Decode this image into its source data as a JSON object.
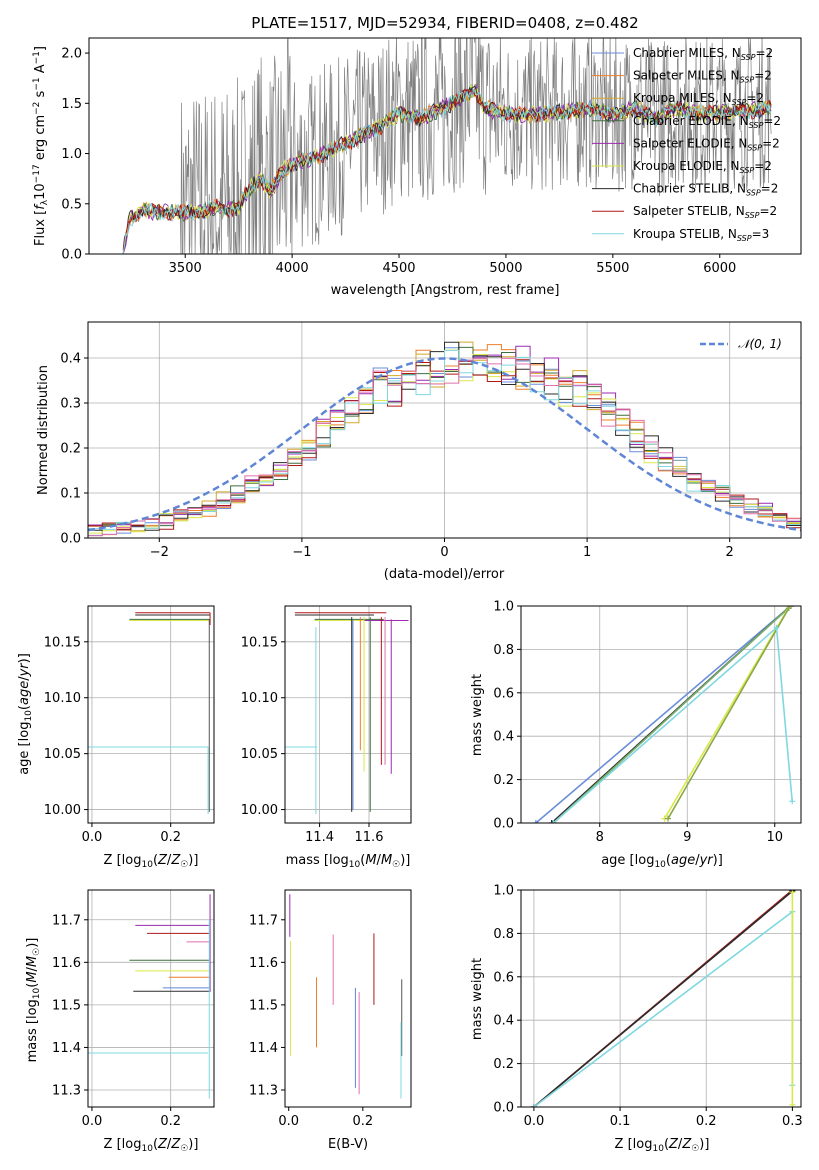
{
  "chart_data": [
    {
      "type": "line",
      "title": "PLATE=1517, MJD=52934, FIBERID=0408, z=0.482",
      "xlabel": "wavelength [Angstrom, rest frame]",
      "ylabel": "Flux [f_λ10^-17 erg cm^-2 s^-1 A^-1]",
      "xlim": [
        3050,
        6380
      ],
      "ylim": [
        0,
        2.15
      ],
      "xticks": [
        3500,
        4000,
        4500,
        5000,
        5500,
        6000
      ],
      "yticks": [
        0.0,
        0.5,
        1.0,
        1.5,
        2.0
      ],
      "grid": false,
      "legend_position": "top-right",
      "data_range": [
        3210,
        6240
      ],
      "model_anchor": {
        "x": [
          3210,
          3240,
          3300,
          3500,
          3550,
          3600,
          3650,
          3700,
          3750,
          3800,
          3850,
          3900,
          3950,
          4000,
          4050,
          4100,
          4200,
          4300,
          4400,
          4500,
          4600,
          4700,
          4800,
          4850,
          4900,
          5000,
          5100,
          5200,
          5300,
          5400,
          5500,
          5600,
          5700,
          5800,
          5900,
          6000,
          6100,
          6240
        ],
        "y": [
          0.03,
          0.35,
          0.43,
          0.41,
          0.42,
          0.43,
          0.47,
          0.44,
          0.47,
          0.65,
          0.75,
          0.62,
          0.82,
          0.9,
          0.93,
          0.95,
          1.05,
          1.15,
          1.25,
          1.4,
          1.35,
          1.45,
          1.55,
          1.65,
          1.45,
          1.4,
          1.38,
          1.4,
          1.42,
          1.45,
          1.38,
          1.45,
          1.35,
          1.45,
          1.4,
          1.4,
          1.42,
          1.45
        ]
      },
      "series": [
        {
          "name": "Chabrier MILES, N_SSP=2",
          "color": "#6a8ed8"
        },
        {
          "name": "Salpeter MILES, N_SSP=2",
          "color": "#ef7f2a"
        },
        {
          "name": "Kroupa MILES, N_SSP=2",
          "color": "#d4a82a"
        },
        {
          "name": "Chabrier ELODIE, N_SSP=2",
          "color": "#3f6e3f"
        },
        {
          "name": "Salpeter ELODIE, N_SSP=2",
          "color": "#9b2ab0"
        },
        {
          "name": "Kroupa ELODIE, N_SSP=2",
          "color": "#d9e84a"
        },
        {
          "name": "Chabrier STELIB, N_SSP=2",
          "color": "#2b2b2b"
        },
        {
          "name": "Salpeter STELIB, N_SSP=2",
          "color": "#b01818"
        },
        {
          "name": "Kroupa STELIB, N_SSP=3",
          "color": "#7fd8e0"
        }
      ],
      "legend_labels": [
        {
          "pre": "Chabrier MILES, N",
          "sub": "SSP",
          "post": "=2"
        },
        {
          "pre": "Salpeter MILES, N",
          "sub": "SSP",
          "post": "=2"
        },
        {
          "pre": "Kroupa MILES, N",
          "sub": "SSP",
          "post": "=2"
        },
        {
          "pre": "Chabrier ELODIE, N",
          "sub": "SSP",
          "post": "=2"
        },
        {
          "pre": "Salpeter ELODIE, N",
          "sub": "SSP",
          "post": "=2"
        },
        {
          "pre": "Kroupa ELODIE, N",
          "sub": "SSP",
          "post": "=2"
        },
        {
          "pre": "Chabrier STELIB, N",
          "sub": "SSP",
          "post": "=2"
        },
        {
          "pre": "Salpeter STELIB, N",
          "sub": "SSP",
          "post": "=2"
        },
        {
          "pre": "Kroupa STELIB, N",
          "sub": "SSP",
          "post": "=3"
        }
      ]
    },
    {
      "type": "bar",
      "xlabel": "(data-model)/error",
      "ylabel": "Normed distribution",
      "xlim": [
        -2.5,
        2.5
      ],
      "ylim": [
        0,
        0.48
      ],
      "xticks": [
        -2,
        -1,
        0,
        1,
        2
      ],
      "yticks": [
        0.0,
        0.1,
        0.2,
        0.3,
        0.4
      ],
      "grid": true,
      "legend_position": "top-right",
      "legend_label": "𝒩(0, 1)",
      "bin_edges_start": -2.5,
      "bin_width": 0.1,
      "envelope": [
        0.018,
        0.021,
        0.024,
        0.028,
        0.032,
        0.038,
        0.046,
        0.056,
        0.07,
        0.085,
        0.1,
        0.115,
        0.13,
        0.155,
        0.18,
        0.2,
        0.23,
        0.26,
        0.29,
        0.31,
        0.33,
        0.34,
        0.355,
        0.37,
        0.375,
        0.39,
        0.4,
        0.4,
        0.39,
        0.38,
        0.375,
        0.36,
        0.35,
        0.34,
        0.33,
        0.31,
        0.29,
        0.26,
        0.23,
        0.2,
        0.175,
        0.155,
        0.13,
        0.11,
        0.1,
        0.085,
        0.072,
        0.062,
        0.05,
        0.04
      ],
      "gaussian": {
        "mean": 0,
        "sigma": 1,
        "color": "#5f86d5"
      }
    },
    {
      "type": "scatter",
      "xlabel": "Z [log10(Z/Z☉)]",
      "ylabel": "age [log10(age/yr)]",
      "xlim": [
        -0.01,
        0.31
      ],
      "ylim": [
        9.988,
        10.182
      ],
      "xticks": [
        0.0,
        0.2
      ],
      "yticks": [
        10.0,
        10.05,
        10.1,
        10.15
      ],
      "grid": true,
      "hlines": [
        {
          "y": 10.176,
          "x0": 0.11,
          "x1": 0.3,
          "color": "#b01818"
        },
        {
          "y": 10.174,
          "x0": 0.11,
          "x1": 0.3,
          "color": "#2b2b2b"
        },
        {
          "y": 10.17,
          "x0": 0.095,
          "x1": 0.3,
          "color": "#3f6e3f"
        },
        {
          "y": 10.169,
          "x0": 0.095,
          "x1": 0.3,
          "color": "#d9e84a"
        },
        {
          "y": 10.056,
          "x0": -0.01,
          "x1": 0.295,
          "color": "#7fd8e0"
        }
      ],
      "vlines": [
        {
          "x": 0.3,
          "y0": 10.165,
          "y1": 10.176,
          "color": "#b01818"
        },
        {
          "x": 0.298,
          "y0": 9.998,
          "y1": 10.17,
          "color": "#555555"
        },
        {
          "x": 0.295,
          "y0": 9.996,
          "y1": 10.056,
          "color": "#7fd8e0"
        }
      ]
    },
    {
      "type": "scatter",
      "xlabel": "mass [log10(M/M☉)]",
      "xlim": [
        11.26,
        11.77
      ],
      "ylim": [
        9.988,
        10.182
      ],
      "xticks": [
        11.4,
        11.6
      ],
      "yticks": [
        10.0,
        10.05,
        10.1,
        10.15
      ],
      "grid": true,
      "hlines": [
        {
          "y": 10.176,
          "x0": 11.3,
          "x1": 11.67,
          "color": "#b01818"
        },
        {
          "y": 10.174,
          "x0": 11.3,
          "x1": 11.62,
          "color": "#2b2b2b"
        },
        {
          "y": 10.17,
          "x0": 11.38,
          "x1": 11.66,
          "color": "#3f6e3f"
        },
        {
          "y": 10.169,
          "x0": 11.38,
          "x1": 11.76,
          "color": "#9b2ab0"
        },
        {
          "y": 10.169,
          "x0": 11.38,
          "x1": 11.58,
          "color": "#d9e84a"
        },
        {
          "y": 10.056,
          "x0": 11.26,
          "x1": 11.39,
          "color": "#7fd8e0"
        }
      ],
      "vlines": [
        {
          "x": 11.385,
          "y0": 9.996,
          "y1": 10.163,
          "color": "#7fd8e0"
        },
        {
          "x": 11.53,
          "y0": 9.998,
          "y1": 10.172,
          "color": "#2b2b2b"
        },
        {
          "x": 11.535,
          "y0": 10.0,
          "y1": 10.17,
          "color": "#5f86d5"
        },
        {
          "x": 11.565,
          "y0": 10.053,
          "y1": 10.172,
          "color": "#ef7f2a"
        },
        {
          "x": 11.58,
          "y0": 10.034,
          "y1": 10.172,
          "color": "#d9e84a"
        },
        {
          "x": 11.605,
          "y0": 9.998,
          "y1": 10.172,
          "color": "#3f6e3f"
        },
        {
          "x": 11.65,
          "y0": 10.04,
          "y1": 10.172,
          "color": "#b01818"
        },
        {
          "x": 11.665,
          "y0": 10.04,
          "y1": 10.172,
          "color": "#e070b0"
        },
        {
          "x": 11.69,
          "y0": 10.032,
          "y1": 10.17,
          "color": "#9b2ab0"
        }
      ]
    },
    {
      "type": "line",
      "xlabel": "age [log10(age/yr)]",
      "ylabel": "mass weight",
      "xlim": [
        7.1,
        10.3
      ],
      "ylim": [
        0.0,
        1.0
      ],
      "xticks": [
        8,
        9,
        10
      ],
      "yticks": [
        0.0,
        0.2,
        0.4,
        0.6,
        0.8,
        1.0
      ],
      "grid": true,
      "series": [
        {
          "name": "",
          "color": "#6a8ed8",
          "x": [
            7.27,
            10.18
          ],
          "y": [
            0.0,
            1.0
          ]
        },
        {
          "name": "",
          "color": "#2b2b2b",
          "x": [
            7.45,
            10.18
          ],
          "y": [
            0.0,
            1.0
          ]
        },
        {
          "name": "",
          "color": "#b01818",
          "x": [
            7.47,
            10.18
          ],
          "y": [
            0.0,
            1.0
          ]
        },
        {
          "name": "",
          "color": "#6db56d",
          "x": [
            7.47,
            10.18
          ],
          "y": [
            0.0,
            1.0
          ]
        },
        {
          "name": "",
          "color": "#d9e84a",
          "x": [
            8.74,
            10.17
          ],
          "y": [
            0.02,
            1.0
          ]
        },
        {
          "name": "",
          "color": "#8aa84a",
          "x": [
            8.78,
            10.16
          ],
          "y": [
            0.02,
            0.99
          ]
        },
        {
          "name": "",
          "color": "#7fd8e0",
          "x": [
            7.47,
            10.02,
            10.2
          ],
          "y": [
            0.0,
            0.9,
            0.1
          ]
        }
      ]
    },
    {
      "type": "scatter",
      "xlabel": "Z [log10(Z/Z☉)]",
      "ylabel": "mass [log10(M/M☉)]",
      "xlim": [
        -0.01,
        0.31
      ],
      "ylim": [
        11.26,
        11.77
      ],
      "xticks": [
        0.0,
        0.2
      ],
      "yticks": [
        11.3,
        11.4,
        11.5,
        11.6,
        11.7
      ],
      "grid": true,
      "hlines": [
        {
          "y": 11.687,
          "x0": 0.11,
          "x1": 0.3,
          "color": "#9b2ab0"
        },
        {
          "y": 11.668,
          "x0": 0.14,
          "x1": 0.3,
          "color": "#b01818"
        },
        {
          "y": 11.648,
          "x0": 0.24,
          "x1": 0.3,
          "color": "#e070b0"
        },
        {
          "y": 11.605,
          "x0": 0.095,
          "x1": 0.3,
          "color": "#3f6e3f"
        },
        {
          "y": 11.58,
          "x0": 0.11,
          "x1": 0.3,
          "color": "#d9e84a"
        },
        {
          "y": 11.565,
          "x0": 0.195,
          "x1": 0.3,
          "color": "#ef7f2a"
        },
        {
          "y": 11.54,
          "x0": 0.18,
          "x1": 0.3,
          "color": "#5f86d5"
        },
        {
          "y": 11.532,
          "x0": 0.105,
          "x1": 0.3,
          "color": "#2b2b2b"
        },
        {
          "y": 11.387,
          "x0": -0.01,
          "x1": 0.295,
          "color": "#7fd8e0"
        }
      ],
      "vlines": [
        {
          "x": 0.3,
          "y0": 11.53,
          "y1": 11.76,
          "color": "#9b2ab0"
        },
        {
          "x": 0.298,
          "y0": 11.28,
          "y1": 11.7,
          "color": "#7fd8e0"
        }
      ]
    },
    {
      "type": "scatter",
      "xlabel": "E(B-V)",
      "xlim": [
        -0.01,
        0.33
      ],
      "ylim": [
        11.26,
        11.77
      ],
      "xticks": [
        0.0,
        0.2
      ],
      "yticks": [
        11.3,
        11.4,
        11.5,
        11.6,
        11.7
      ],
      "grid": false,
      "vlines": [
        {
          "x": 0.003,
          "y0": 11.66,
          "y1": 11.76,
          "color": "#9b2ab0"
        },
        {
          "x": 0.005,
          "y0": 11.38,
          "y1": 11.65,
          "color": "#d9e84a"
        },
        {
          "x": 0.075,
          "y0": 11.4,
          "y1": 11.565,
          "color": "#ef7f2a"
        },
        {
          "x": 0.12,
          "y0": 11.5,
          "y1": 11.665,
          "color": "#e070b0"
        },
        {
          "x": 0.18,
          "y0": 11.305,
          "y1": 11.54,
          "color": "#5f86d5"
        },
        {
          "x": 0.19,
          "y0": 11.29,
          "y1": 11.53,
          "color": "#e070b0"
        },
        {
          "x": 0.23,
          "y0": 11.5,
          "y1": 11.668,
          "color": "#b01818"
        },
        {
          "x": 0.305,
          "y0": 11.38,
          "y1": 11.56,
          "color": "#555555"
        },
        {
          "x": 0.303,
          "y0": 11.28,
          "y1": 11.46,
          "color": "#7fd8e0"
        }
      ]
    },
    {
      "type": "line",
      "xlabel": "Z [log10(Z/Z☉)]",
      "ylabel": "mass weight",
      "xlim": [
        -0.015,
        0.31
      ],
      "ylim": [
        0.0,
        1.0
      ],
      "xticks": [
        0.0,
        0.1,
        0.2,
        0.3
      ],
      "yticks": [
        0.0,
        0.2,
        0.4,
        0.6,
        0.8,
        1.0
      ],
      "grid": true,
      "series": [
        {
          "name": "",
          "color": "#b01818",
          "x": [
            0.0,
            0.3
          ],
          "y": [
            0.0,
            1.0
          ]
        },
        {
          "name": "",
          "color": "#2b2b2b",
          "x": [
            0.0,
            0.3
          ],
          "y": [
            0.0,
            0.995
          ]
        },
        {
          "name": "",
          "color": "#7fd8e0",
          "x": [
            0.0,
            0.3,
            0.3
          ],
          "y": [
            0.0,
            0.9,
            0.1
          ]
        },
        {
          "name": "",
          "color": "#d9e84a",
          "x": [
            0.3,
            0.3
          ],
          "y": [
            0.01,
            0.99
          ]
        }
      ]
    }
  ]
}
